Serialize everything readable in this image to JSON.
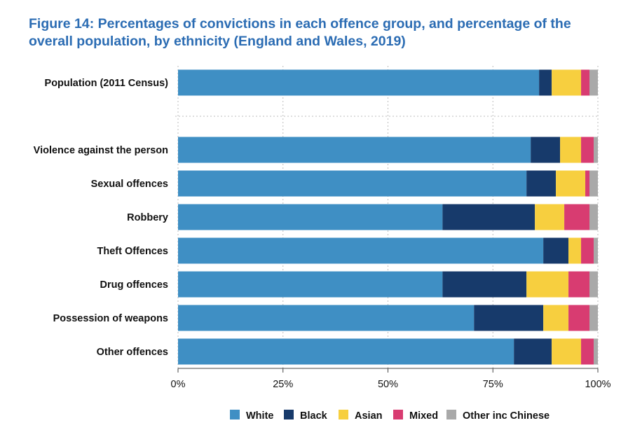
{
  "chart_data": {
    "type": "bar",
    "orientation": "horizontal",
    "stacked": true,
    "title_line1": "Figure 14: Percentages of convictions in each offence group, and percentage of the",
    "title_line2": "overall population, by ethnicity (England and Wales, 2019)",
    "categories": [
      "Population (2011 Census)",
      "Violence against the person",
      "Sexual offences",
      "Robbery",
      "Theft Offences",
      "Drug offences",
      "Possession of weapons",
      "Other offences"
    ],
    "series": [
      {
        "name": "White",
        "color": "#3f8fc4",
        "values": [
          86,
          84,
          83,
          63,
          87,
          63,
          70.5,
          80
        ]
      },
      {
        "name": "Black",
        "color": "#173a6b",
        "values": [
          3,
          7,
          7,
          22,
          6,
          20,
          16.5,
          9
        ]
      },
      {
        "name": "Asian",
        "color": "#f7cf3f",
        "values": [
          7,
          5,
          7,
          7,
          3,
          10,
          6,
          7
        ]
      },
      {
        "name": "Mixed",
        "color": "#d83c71",
        "values": [
          2,
          3,
          1,
          6,
          3,
          5,
          5,
          3
        ]
      },
      {
        "name": "Other inc Chinese",
        "color": "#a9a9a9",
        "values": [
          2,
          1,
          2,
          2,
          1,
          2,
          2,
          1
        ]
      }
    ],
    "xticks": [
      "0%",
      "25%",
      "50%",
      "75%",
      "100%"
    ],
    "xlim": [
      0,
      100
    ],
    "gridlines": "vertical dotted",
    "legend_position": "bottom",
    "separator_after_category": 0
  }
}
